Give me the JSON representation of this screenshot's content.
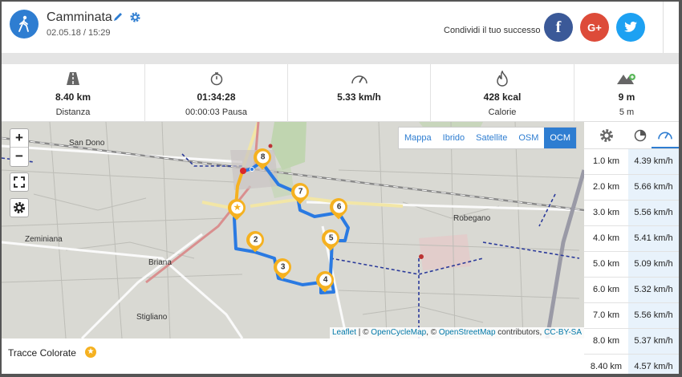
{
  "activity": {
    "title": "Camminata",
    "date": "02.05.18 / 15:29",
    "icon": "walking-icon",
    "accent": "#2e7dd1"
  },
  "share": {
    "label": "Condividi il tuo successo",
    "facebook": "f",
    "google": "G+",
    "twitter_icon": "twitter-bird-icon"
  },
  "stats": [
    {
      "icon": "road-icon",
      "value": "8.40 km",
      "label": "Distanza"
    },
    {
      "icon": "stopwatch-icon",
      "value": "01:34:28",
      "label": "00:00:03 Pausa"
    },
    {
      "icon": "speedometer-icon",
      "value": "5.33 km/h",
      "label": ""
    },
    {
      "icon": "flame-icon",
      "value": "428 kcal",
      "label": "Calorie"
    },
    {
      "icon": "mountain-icon",
      "value": "9 m",
      "label": "5 m"
    }
  ],
  "map": {
    "zoom_in": "+",
    "zoom_out": "−",
    "layers": [
      "Mappa",
      "Ibrido",
      "Satellite",
      "OSM",
      "OCM"
    ],
    "active_layer": "OCM",
    "places": [
      "San Dono",
      "Zeminiana",
      "Briana",
      "Stigliano",
      "Robegano"
    ],
    "markers": [
      "8",
      "7",
      "6",
      "5",
      "2",
      "3",
      "4"
    ],
    "attribution": {
      "leaflet": "Leaflet",
      "sep1": " | © ",
      "ocm": "OpenCycleMap",
      "sep2": ", © ",
      "osm": "OpenStreetMap",
      "contrib": " contributors, ",
      "license": "CC-BY-SA"
    },
    "route_color": "#2a7ae2"
  },
  "footer": {
    "label": "Tracce Colorate",
    "badge": "★"
  },
  "splits": [
    {
      "km": "1.0 km",
      "speed": "4.39 km/h"
    },
    {
      "km": "2.0 km",
      "speed": "5.66 km/h"
    },
    {
      "km": "3.0 km",
      "speed": "5.56 km/h"
    },
    {
      "km": "4.0 km",
      "speed": "5.41 km/h"
    },
    {
      "km": "5.0 km",
      "speed": "5.09 km/h"
    },
    {
      "km": "6.0 km",
      "speed": "5.32 km/h"
    },
    {
      "km": "7.0 km",
      "speed": "5.56 km/h"
    },
    {
      "km": "8.0 km",
      "speed": "5.37 km/h"
    },
    {
      "km": "8.40 km",
      "speed": "4.57 km/h"
    }
  ]
}
